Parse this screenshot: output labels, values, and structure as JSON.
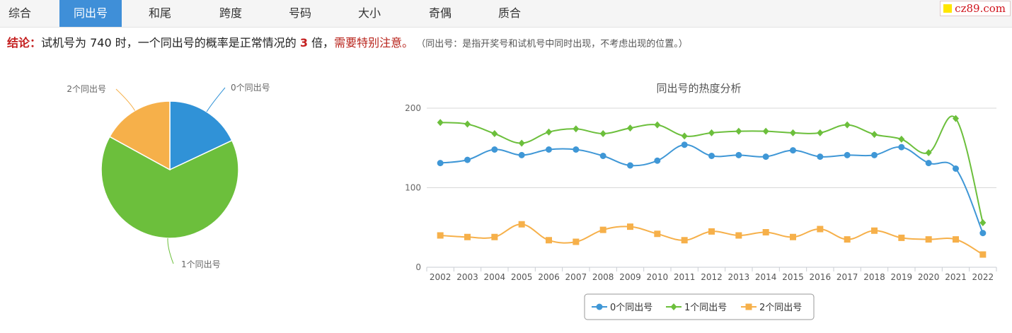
{
  "tabs": [
    {
      "label": "综合",
      "active": false
    },
    {
      "label": "同出号",
      "active": true
    },
    {
      "label": "和尾",
      "active": false
    },
    {
      "label": "跨度",
      "active": false
    },
    {
      "label": "号码",
      "active": false
    },
    {
      "label": "大小",
      "active": false
    },
    {
      "label": "奇偶",
      "active": false
    },
    {
      "label": "质合",
      "active": false
    }
  ],
  "logo": {
    "text": "cz89.com"
  },
  "conclusion": {
    "label": "结论：",
    "text1": "试机号为 740 时，一个同出号的概率是正常情况的 ",
    "ratio": "3",
    "text2": " 倍，",
    "warning": "需要特别注意。",
    "note": " （同出号：是指开奖号和试机号中同时出现，不考虑出现的位置。）"
  },
  "colors": {
    "s0": "#3f97d6",
    "s1": "#6cbf3c",
    "s2": "#f6b04a",
    "tab_active": "#3f8fd8",
    "warning": "#b8231b"
  },
  "chart_data": [
    {
      "type": "pie",
      "labels": [
        "0个同出号",
        "1个同出号",
        "2个同出号"
      ],
      "values": [
        18,
        65,
        17
      ],
      "colors": [
        "#3092d7",
        "#6cbf3c",
        "#f6b04a"
      ]
    },
    {
      "type": "line",
      "title": "同出号的热度分析",
      "categories": [
        "2002",
        "2003",
        "2004",
        "2005",
        "2006",
        "2007",
        "2008",
        "2009",
        "2010",
        "2011",
        "2012",
        "2013",
        "2014",
        "2015",
        "2016",
        "2017",
        "2018",
        "2019",
        "2020",
        "2021",
        "2022"
      ],
      "ylim": [
        0,
        200
      ],
      "yticks": [
        "0",
        "100",
        "200"
      ],
      "grid": true,
      "legend_position": "bottom-center",
      "series": [
        {
          "name": "0个同出号",
          "color": "#3f97d6",
          "marker": "circle",
          "values": [
            131,
            135,
            148,
            141,
            148,
            148,
            140,
            128,
            134,
            154,
            140,
            141,
            139,
            147,
            139,
            141,
            141,
            151,
            131,
            124,
            43
          ]
        },
        {
          "name": "1个同出号",
          "color": "#6cbf3c",
          "marker": "diamond",
          "values": [
            182,
            180,
            168,
            156,
            170,
            174,
            168,
            175,
            179,
            165,
            169,
            171,
            171,
            169,
            169,
            179,
            167,
            161,
            144,
            187,
            56
          ]
        },
        {
          "name": "2个同出号",
          "color": "#f6b04a",
          "marker": "square",
          "values": [
            40,
            38,
            38,
            54,
            34,
            32,
            47,
            51,
            42,
            34,
            45,
            40,
            44,
            38,
            48,
            35,
            46,
            37,
            35,
            35,
            16
          ]
        }
      ]
    }
  ]
}
